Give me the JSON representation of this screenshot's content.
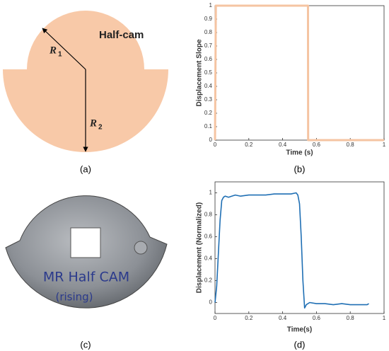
{
  "diagram": {
    "title": "Half-cam",
    "r1_label": "R",
    "r1_subscript": "1",
    "r2_label": "R",
    "r2_subscript": "2",
    "caption": "(a)"
  },
  "photo": {
    "handwriting": [
      "MR Half CAM",
      "(rising)"
    ],
    "caption": "(c)"
  },
  "chart_data": [
    {
      "type": "line",
      "caption": "(b)",
      "xlabel": "Time (s)",
      "ylabel": "Displacement Slope",
      "x": [
        0,
        0.005,
        0.55,
        0.551,
        1
      ],
      "series": [
        {
          "name": "Displacement Slope",
          "color": "#f5c4a2",
          "values": [
            0,
            1,
            1,
            0,
            0
          ]
        }
      ],
      "xlim": [
        0,
        1
      ],
      "xticks": [
        0,
        0.2,
        0.4,
        0.6,
        0.8,
        1
      ],
      "ylim": [
        0,
        1
      ],
      "yticks": [
        0,
        0.1,
        0.2,
        0.3,
        0.4,
        0.5,
        0.6,
        0.7,
        0.8,
        0.9,
        1
      ]
    },
    {
      "type": "line",
      "caption": "(d)",
      "xlabel": "Time(s)",
      "ylabel": "Displacement (Normalized)",
      "x": [
        0,
        0.01,
        0.02,
        0.03,
        0.04,
        0.05,
        0.06,
        0.08,
        0.1,
        0.12,
        0.15,
        0.2,
        0.25,
        0.3,
        0.35,
        0.4,
        0.45,
        0.48,
        0.49,
        0.5,
        0.51,
        0.52,
        0.53,
        0.54,
        0.56,
        0.6,
        0.65,
        0.7,
        0.75,
        0.8,
        0.85,
        0.9,
        0.91
      ],
      "series": [
        {
          "name": "Displacement",
          "color": "#1f6fb4",
          "values": [
            0,
            0.15,
            0.45,
            0.75,
            0.93,
            0.96,
            0.97,
            0.96,
            0.97,
            0.98,
            0.97,
            0.98,
            0.98,
            0.98,
            0.99,
            0.99,
            0.99,
            1.0,
            0.98,
            0.9,
            0.6,
            0.2,
            -0.05,
            -0.02,
            0,
            -0.01,
            -0.01,
            -0.02,
            -0.01,
            -0.02,
            -0.02,
            -0.02,
            -0.01
          ]
        }
      ],
      "xlim": [
        0,
        1
      ],
      "xticks": [
        0,
        0.2,
        0.4,
        0.6,
        0.8,
        1
      ],
      "ylim": [
        -0.1,
        1.1
      ],
      "yticks": [
        0,
        0.2,
        0.4,
        0.6,
        0.8,
        1
      ]
    }
  ]
}
